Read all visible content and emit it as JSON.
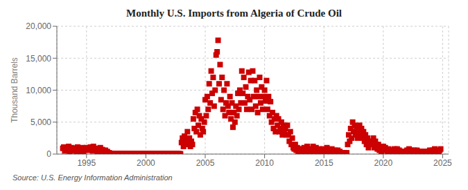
{
  "chart_data": {
    "type": "scatter",
    "title": "Monthly U.S. Imports from Algeria of Crude Oil",
    "ylabel": "Thousand Barrels",
    "source": "Source: U.S. Energy Information Administration",
    "color": "#cc0000",
    "marker": "square",
    "grid": true,
    "xlim": [
      1992.5,
      2025.5
    ],
    "xticks": [
      1995,
      2000,
      2005,
      2010,
      2015,
      2020,
      2025
    ],
    "ylim": [
      0,
      20000
    ],
    "yticks": [
      0,
      {
        "value": 5000,
        "label": "5,000"
      },
      {
        "value": 10000,
        "label": "10,000"
      },
      {
        "value": 15000,
        "label": "15,000"
      },
      {
        "value": 20000,
        "label": "20,000"
      }
    ],
    "x": [
      1993.0,
      1993.083,
      1993.167,
      1993.25,
      1993.333,
      1993.417,
      1993.5,
      1993.583,
      1993.667,
      1993.75,
      1993.833,
      1993.917,
      1994.0,
      1994.083,
      1994.167,
      1994.25,
      1994.333,
      1994.417,
      1994.5,
      1994.583,
      1994.667,
      1994.75,
      1994.833,
      1994.917,
      1995.0,
      1995.083,
      1995.167,
      1995.25,
      1995.333,
      1995.417,
      1995.5,
      1995.583,
      1995.667,
      1995.75,
      1995.833,
      1995.917,
      1996.0,
      1996.083,
      1996.167,
      1996.25,
      1996.333,
      1996.417,
      1996.5,
      1996.583,
      1996.667,
      1996.75,
      1996.833,
      1996.917,
      1997.0,
      1997.083,
      1997.167,
      1997.25,
      1997.333,
      1997.417,
      1997.5,
      1997.583,
      1997.667,
      1997.75,
      1997.833,
      1997.917,
      1998.0,
      1998.083,
      1998.167,
      1998.25,
      1998.333,
      1998.417,
      1998.5,
      1998.583,
      1998.667,
      1998.75,
      1998.833,
      1998.917,
      1999.0,
      1999.083,
      1999.167,
      1999.25,
      1999.333,
      1999.417,
      1999.5,
      1999.583,
      1999.667,
      1999.75,
      1999.833,
      1999.917,
      2000.0,
      2000.083,
      2000.167,
      2000.25,
      2000.333,
      2000.417,
      2000.5,
      2000.583,
      2000.667,
      2000.75,
      2000.833,
      2000.917,
      2001.0,
      2001.083,
      2001.167,
      2001.25,
      2001.333,
      2001.417,
      2001.5,
      2001.583,
      2001.667,
      2001.75,
      2001.833,
      2001.917,
      2002.0,
      2002.083,
      2002.167,
      2002.25,
      2002.333,
      2002.417,
      2002.5,
      2002.583,
      2002.667,
      2002.75,
      2002.833,
      2002.917,
      2003.0,
      2003.083,
      2003.167,
      2003.25,
      2003.333,
      2003.417,
      2003.5,
      2003.583,
      2003.667,
      2003.75,
      2003.833,
      2003.917,
      2004.0,
      2004.083,
      2004.167,
      2004.25,
      2004.333,
      2004.417,
      2004.5,
      2004.583,
      2004.667,
      2004.75,
      2004.833,
      2004.917,
      2005.0,
      2005.083,
      2005.167,
      2005.25,
      2005.333,
      2005.417,
      2005.5,
      2005.583,
      2005.667,
      2005.75,
      2005.833,
      2005.917,
      2006.0,
      2006.083,
      2006.167,
      2006.25,
      2006.333,
      2006.417,
      2006.5,
      2006.583,
      2006.667,
      2006.75,
      2006.833,
      2006.917,
      2007.0,
      2007.083,
      2007.167,
      2007.25,
      2007.333,
      2007.417,
      2007.5,
      2007.583,
      2007.667,
      2007.75,
      2007.833,
      2007.917,
      2008.0,
      2008.083,
      2008.167,
      2008.25,
      2008.333,
      2008.417,
      2008.5,
      2008.583,
      2008.667,
      2008.75,
      2008.833,
      2008.917,
      2009.0,
      2009.083,
      2009.167,
      2009.25,
      2009.333,
      2009.417,
      2009.5,
      2009.583,
      2009.667,
      2009.75,
      2009.833,
      2009.917,
      2010.0,
      2010.083,
      2010.167,
      2010.25,
      2010.333,
      2010.417,
      2010.5,
      2010.583,
      2010.667,
      2010.75,
      2010.833,
      2010.917,
      2011.0,
      2011.083,
      2011.167,
      2011.25,
      2011.333,
      2011.417,
      2011.5,
      2011.583,
      2011.667,
      2011.75,
      2011.833,
      2011.917,
      2012.0,
      2012.083,
      2012.167,
      2012.25,
      2012.333,
      2012.417,
      2012.5,
      2012.583,
      2012.667,
      2012.75,
      2012.833,
      2012.917,
      2013.0,
      2013.083,
      2013.167,
      2013.25,
      2013.333,
      2013.417,
      2013.5,
      2013.583,
      2013.667,
      2013.75,
      2013.833,
      2013.917,
      2014.0,
      2014.083,
      2014.167,
      2014.25,
      2014.333,
      2014.417,
      2014.5,
      2014.583,
      2014.667,
      2014.75,
      2014.833,
      2014.917,
      2015.0,
      2015.083,
      2015.167,
      2015.25,
      2015.333,
      2015.417,
      2015.5,
      2015.583,
      2015.667,
      2015.75,
      2015.833,
      2015.917,
      2016.0,
      2016.083,
      2016.167,
      2016.25,
      2016.333,
      2016.417,
      2016.5,
      2016.583,
      2016.667,
      2016.75,
      2016.833,
      2016.917,
      2017.0,
      2017.083,
      2017.167,
      2017.25,
      2017.333,
      2017.417,
      2017.5,
      2017.583,
      2017.667,
      2017.75,
      2017.833,
      2017.917,
      2018.0,
      2018.083,
      2018.167,
      2018.25,
      2018.333,
      2018.417,
      2018.5,
      2018.583,
      2018.667,
      2018.75,
      2018.833,
      2018.917,
      2019.0,
      2019.083,
      2019.167,
      2019.25,
      2019.333,
      2019.417,
      2019.5,
      2019.583,
      2019.667,
      2019.75,
      2019.833,
      2019.917,
      2020.0,
      2020.083,
      2020.167,
      2020.25,
      2020.333,
      2020.417,
      2020.5,
      2020.583,
      2020.667,
      2020.75,
      2020.833,
      2020.917,
      2021.0,
      2021.083,
      2021.167,
      2021.25,
      2021.333,
      2021.417,
      2021.5,
      2021.583,
      2021.667,
      2021.75,
      2021.833,
      2021.917,
      2022.0,
      2022.083,
      2022.167,
      2022.25,
      2022.333,
      2022.417,
      2022.5,
      2022.583,
      2022.667,
      2022.75,
      2022.833,
      2022.917,
      2023.0,
      2023.083,
      2023.167,
      2023.25,
      2023.333,
      2023.417,
      2023.5,
      2023.583,
      2023.667,
      2023.75,
      2023.833,
      2023.917,
      2024.0,
      2024.083,
      2024.167,
      2024.25,
      2024.333,
      2024.417,
      2024.5,
      2024.583,
      2024.667,
      2024.75,
      2024.833
    ],
    "values": [
      900,
      1100,
      500,
      800,
      700,
      600,
      1200,
      400,
      800,
      1000,
      600,
      750,
      500,
      900,
      400,
      1100,
      700,
      300,
      600,
      800,
      1000,
      400,
      600,
      800,
      1000,
      700,
      900,
      600,
      1100,
      800,
      500,
      1200,
      700,
      900,
      600,
      400,
      800,
      600,
      1000,
      400,
      700,
      500,
      300,
      600,
      200,
      400,
      150,
      200,
      100,
      80,
      50,
      100,
      80,
      50,
      80,
      60,
      40,
      80,
      60,
      50,
      80,
      50,
      60,
      40,
      80,
      50,
      60,
      40,
      60,
      50,
      40,
      60,
      50,
      60,
      40,
      50,
      60,
      40,
      50,
      60,
      40,
      50,
      60,
      40,
      50,
      60,
      40,
      50,
      60,
      40,
      50,
      60,
      40,
      50,
      60,
      40,
      50,
      60,
      40,
      50,
      60,
      40,
      50,
      60,
      40,
      50,
      60,
      40,
      50,
      60,
      40,
      50,
      60,
      40,
      50,
      60,
      40,
      50,
      60,
      40,
      1800,
      2500,
      1200,
      2800,
      1500,
      2200,
      3500,
      1800,
      2500,
      1200,
      2000,
      1500,
      5500,
      4000,
      6500,
      3500,
      7000,
      4500,
      6000,
      3000,
      5500,
      4000,
      3500,
      5000,
      8500,
      6000,
      9000,
      7000,
      11000,
      8000,
      13000,
      9500,
      12000,
      7500,
      10000,
      15500,
      16000,
      17800,
      11000,
      14000,
      8500,
      12000,
      7000,
      10000,
      6000,
      8000,
      11000,
      7500,
      6500,
      9000,
      5500,
      8000,
      4200,
      6500,
      5000,
      7500,
      6000,
      9500,
      7000,
      10000,
      8000,
      13000,
      9500,
      12000,
      8000,
      10500,
      7000,
      9000,
      12800,
      8500,
      11500,
      7000,
      13000,
      9000,
      11500,
      7500,
      10000,
      6500,
      9000,
      12000,
      8000,
      10500,
      7000,
      9000,
      10000,
      8300,
      11500,
      7000,
      9000,
      6000,
      8200,
      5000,
      6500,
      4000,
      5500,
      3500,
      6000,
      4500,
      5500,
      3500,
      4000,
      5000,
      3000,
      4500,
      3500,
      4000,
      3000,
      4500,
      3000,
      2000,
      3500,
      1500,
      2500,
      1000,
      800,
      1500,
      600,
      1000,
      400,
      800,
      600,
      200,
      800,
      400,
      1000,
      200,
      600,
      1200,
      400,
      800,
      300,
      500,
      800,
      1200,
      400,
      600,
      1000,
      300,
      500,
      800,
      200,
      600,
      400,
      800,
      400,
      200,
      600,
      1000,
      300,
      600,
      200,
      400,
      800,
      200,
      400,
      600,
      200,
      400,
      600,
      200,
      400,
      200,
      100,
      200,
      100,
      200,
      100,
      200,
      1500,
      3000,
      2000,
      4000,
      2500,
      5000,
      3500,
      4500,
      3000,
      4000,
      2500,
      3500,
      4500,
      3000,
      4000,
      2500,
      3500,
      2000,
      3000,
      1500,
      2500,
      1000,
      2000,
      1500,
      2000,
      1500,
      2500,
      1000,
      2000,
      1500,
      800,
      1500,
      600,
      1000,
      400,
      800,
      1200,
      800,
      1000,
      600,
      400,
      800,
      200,
      600,
      400,
      600,
      400,
      800,
      600,
      400,
      800,
      200,
      600,
      400,
      200,
      400,
      200,
      400,
      200,
      400,
      600,
      400,
      800,
      400,
      600,
      200,
      400,
      600,
      200,
      400,
      600,
      400,
      200,
      400,
      200,
      400,
      200,
      400,
      200,
      400,
      200,
      400,
      200,
      600,
      400,
      200,
      600,
      400,
      800,
      400,
      600,
      200,
      400,
      600,
      800
    ]
  }
}
